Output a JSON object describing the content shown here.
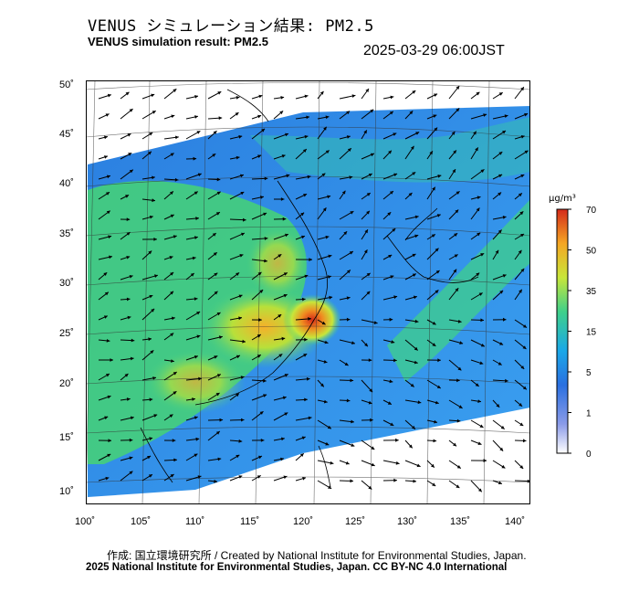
{
  "header": {
    "title_jp": "VENUS シミュレーション結果: PM2.5",
    "title_en": "VENUS simulation result: PM2.5",
    "timestamp": "2025-03-29 06:00JST"
  },
  "map": {
    "lon_ticks": [
      "100˚",
      "105˚",
      "110˚",
      "115˚",
      "120˚",
      "125˚",
      "130˚",
      "135˚",
      "140˚"
    ],
    "lat_ticks": [
      "50˚",
      "45˚",
      "40˚",
      "35˚",
      "30˚",
      "25˚",
      "20˚",
      "15˚",
      "10˚"
    ]
  },
  "colorbar": {
    "unit_label": "μg/m³",
    "levels": [
      "0",
      "1",
      "5",
      "15",
      "35",
      "50",
      "70"
    ],
    "colors": [
      "#ffffff",
      "#5b7be0",
      "#1aa8e8",
      "#3fd08a",
      "#c8e63a",
      "#f5a623",
      "#d42a1a"
    ]
  },
  "footer": {
    "credit_line1": "作成: 国立環境研究所 / Created by National Institute for Environmental Studies, Japan.",
    "credit_line2": "2025 National Institute for Environmental Studies, Japan. CC BY-NC 4.0 International"
  }
}
